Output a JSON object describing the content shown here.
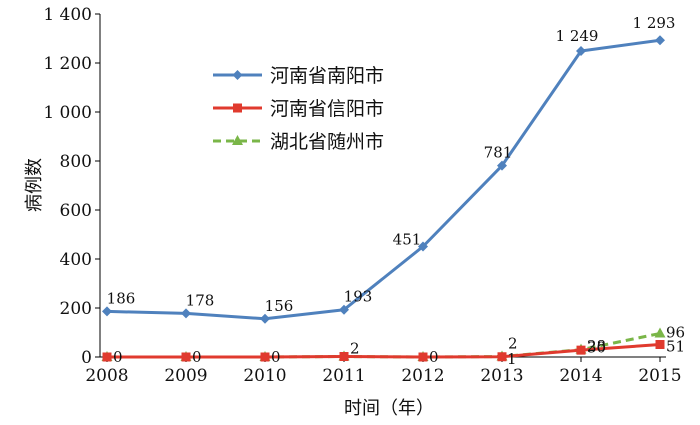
{
  "chart_data": {
    "type": "line",
    "x": [
      "2008",
      "2009",
      "2010",
      "2011",
      "2012",
      "2013",
      "2014",
      "2015"
    ],
    "xlabel": "时间（年）",
    "ylabel": "病例数",
    "ylim": [
      0,
      1400
    ],
    "yticks": [
      0,
      200,
      400,
      600,
      800,
      1000,
      1200,
      1400
    ],
    "ytick_labels": [
      "0",
      "200",
      "400",
      "600",
      "800",
      "1 000",
      "1 200",
      "1 400"
    ],
    "legend_position": "upper-left-inside",
    "grid": false,
    "series": [
      {
        "name": "河南省南阳市",
        "color": "#4f81bd",
        "marker": "diamond",
        "line_style": "solid",
        "values": [
          186,
          178,
          156,
          193,
          451,
          781,
          1249,
          1293
        ],
        "labels": [
          "186",
          "178",
          "156",
          "193",
          "451",
          "781",
          "1 249",
          "1 293"
        ]
      },
      {
        "name": "河南省信阳市",
        "color": "#e03a2e",
        "marker": "square",
        "line_style": "solid",
        "values": [
          0,
          0,
          0,
          2,
          0,
          1,
          28,
          51
        ],
        "labels": [
          "0",
          "0",
          "0",
          "2",
          "0",
          "1",
          "28",
          "51"
        ]
      },
      {
        "name": "湖北省随州市",
        "color": "#7ab648",
        "marker": "triangle",
        "line_style": "dashed",
        "values": [
          0,
          0,
          0,
          2,
          0,
          2,
          30,
          96
        ],
        "labels": [
          "",
          "",
          "",
          "",
          "",
          "2",
          "30",
          "96"
        ]
      }
    ]
  }
}
